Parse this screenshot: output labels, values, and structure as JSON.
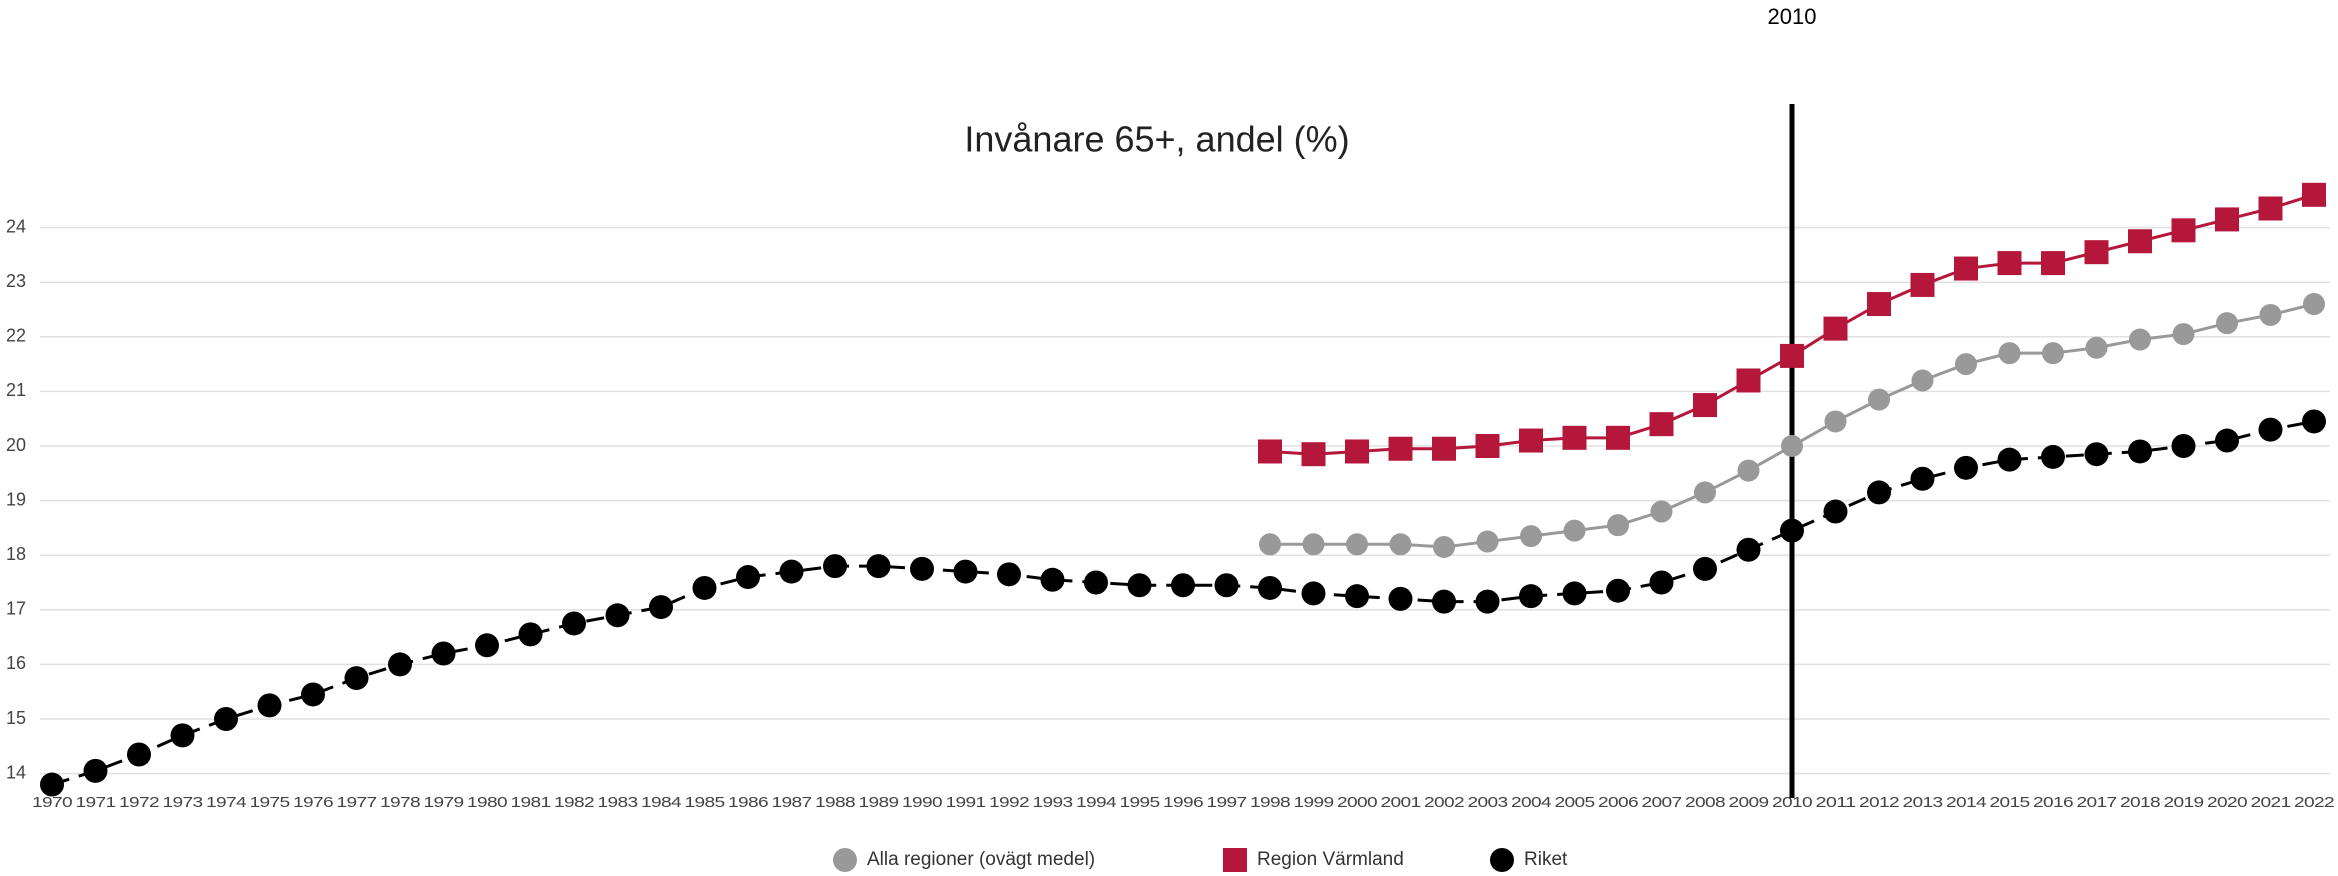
{
  "chart_data": {
    "type": "line",
    "title": "Invånare 65+, andel (%)",
    "categories": [
      "1970",
      "1971",
      "1972",
      "1973",
      "1974",
      "1975",
      "1976",
      "1977",
      "1978",
      "1979",
      "1980",
      "1981",
      "1982",
      "1983",
      "1984",
      "1985",
      "1986",
      "1987",
      "1988",
      "1989",
      "1990",
      "1991",
      "1992",
      "1993",
      "1994",
      "1995",
      "1996",
      "1997",
      "1998",
      "1999",
      "2000",
      "2001",
      "2002",
      "2003",
      "2004",
      "2005",
      "2006",
      "2007",
      "2008",
      "2009",
      "2010",
      "2011",
      "2012",
      "2013",
      "2014",
      "2015",
      "2016",
      "2017",
      "2018",
      "2019",
      "2020",
      "2021",
      "2022"
    ],
    "series": [
      {
        "name": "Alla regioner (ovägt medel)",
        "color": "#999999",
        "marker": "circle",
        "dash": false,
        "values": [
          null,
          null,
          null,
          null,
          null,
          null,
          null,
          null,
          null,
          null,
          null,
          null,
          null,
          null,
          null,
          null,
          null,
          null,
          null,
          null,
          null,
          null,
          null,
          null,
          null,
          null,
          null,
          null,
          18.2,
          18.2,
          18.2,
          18.2,
          18.15,
          18.25,
          18.35,
          18.45,
          18.55,
          18.8,
          19.15,
          19.55,
          20.0,
          20.45,
          20.85,
          21.2,
          21.5,
          21.7,
          21.7,
          21.8,
          21.95,
          22.05,
          22.25,
          22.4,
          22.6
        ]
      },
      {
        "name": "Region Värmland",
        "color": "#b5173b",
        "marker": "square",
        "dash": false,
        "values": [
          null,
          null,
          null,
          null,
          null,
          null,
          null,
          null,
          null,
          null,
          null,
          null,
          null,
          null,
          null,
          null,
          null,
          null,
          null,
          null,
          null,
          null,
          null,
          null,
          null,
          null,
          null,
          null,
          19.9,
          19.85,
          19.9,
          19.95,
          19.95,
          20.0,
          20.1,
          20.15,
          20.15,
          20.4,
          20.75,
          21.2,
          21.65,
          22.15,
          22.6,
          22.95,
          23.25,
          23.35,
          23.35,
          23.55,
          23.75,
          23.95,
          24.15,
          24.35,
          24.6
        ]
      },
      {
        "name": "Riket",
        "color": "#000000",
        "marker": "circle",
        "dash": true,
        "values": [
          13.8,
          14.05,
          14.35,
          14.7,
          15.0,
          15.25,
          15.45,
          15.75,
          16.0,
          16.2,
          16.35,
          16.55,
          16.75,
          16.9,
          17.05,
          17.4,
          17.6,
          17.7,
          17.8,
          17.8,
          17.75,
          17.7,
          17.65,
          17.55,
          17.5,
          17.45,
          17.45,
          17.45,
          17.4,
          17.3,
          17.25,
          17.2,
          17.15,
          17.15,
          17.25,
          17.3,
          17.35,
          17.5,
          17.75,
          18.1,
          18.45,
          18.8,
          19.15,
          19.4,
          19.6,
          19.75,
          19.8,
          19.85,
          19.9,
          20.0,
          20.1,
          20.3,
          20.45
        ]
      }
    ],
    "ylim": [
      13.7,
      25
    ],
    "yticks": [
      14,
      15,
      16,
      17,
      18,
      19,
      20,
      21,
      22,
      23,
      24
    ],
    "grid": true,
    "legend": "bottom",
    "annotations": [
      {
        "text": "2010",
        "category": "2010"
      }
    ]
  }
}
